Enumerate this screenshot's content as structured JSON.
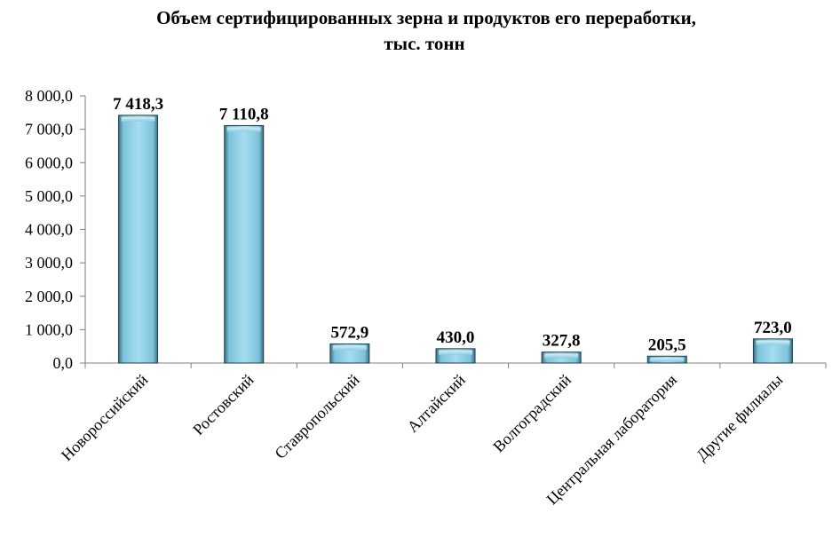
{
  "chart_data": {
    "type": "bar",
    "title": "Объем сертифицированных зерна и продуктов его переработки,",
    "subtitle": "тыс. тонн",
    "categories": [
      "Новороссийский",
      "Ростовский",
      "Ставропольский",
      "Алтайский",
      "Волгоградский",
      "Центральная  лаборатория",
      "Другие филиалы"
    ],
    "values": [
      7418.3,
      7110.8,
      572.9,
      430.0,
      327.8,
      205.5,
      723.0
    ],
    "value_labels": [
      "7 418,3",
      "7 110,8",
      "572,9",
      "430,0",
      "327,8",
      "205,5",
      "723,0"
    ],
    "ylim": [
      0,
      8000
    ],
    "yticks": [
      0,
      1000,
      2000,
      3000,
      4000,
      5000,
      6000,
      7000,
      8000
    ],
    "ytick_labels": [
      "0,0",
      "1 000,0",
      "2 000,0",
      "3 000,0",
      "4 000,0",
      "5 000,0",
      "6 000,0",
      "7 000,0",
      "8 000,0"
    ],
    "xlabel": "",
    "ylabel": "",
    "grid": false,
    "legend": "none",
    "colors": {
      "bar_light": "#a6dcee",
      "bar_mid": "#7cc3dc",
      "bar_dark": "#3d6f80",
      "bar_edge": "#1f3f4a"
    }
  }
}
